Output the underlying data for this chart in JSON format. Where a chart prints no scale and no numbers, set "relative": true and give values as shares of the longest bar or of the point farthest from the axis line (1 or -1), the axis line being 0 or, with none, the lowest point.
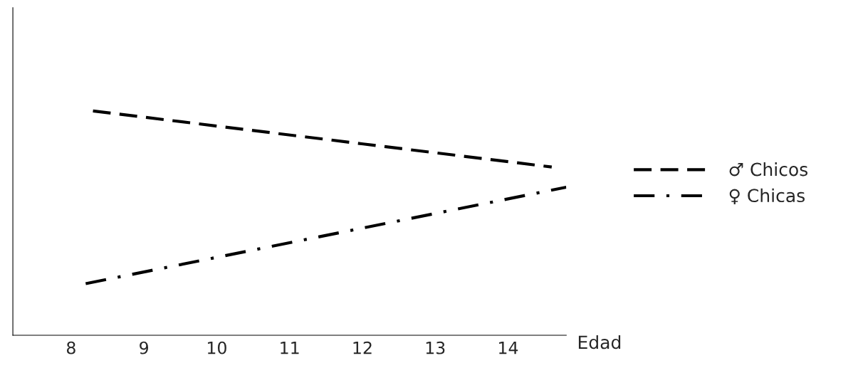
{
  "chart_data": {
    "type": "line",
    "xlabel": "Edad",
    "relative": true,
    "xlim": [
      7.2,
      14.8
    ],
    "xticks": [
      8,
      9,
      10,
      11,
      12,
      13,
      14
    ],
    "x": [
      8.3,
      14.6
    ],
    "series": [
      {
        "name": "♂ Chicos",
        "color": "#000000",
        "values": [
          1,
          0.75
        ],
        "line_style": "dashed"
      },
      {
        "name": "♀ Chicas",
        "color": "#000000",
        "values": [
          0.23,
          0.66
        ],
        "line_style": "dashdot",
        "x": [
          8.2,
          14.8
        ]
      }
    ],
    "legend": "right",
    "grid": false,
    "marker": "none",
    "tick_labels": "x"
  }
}
